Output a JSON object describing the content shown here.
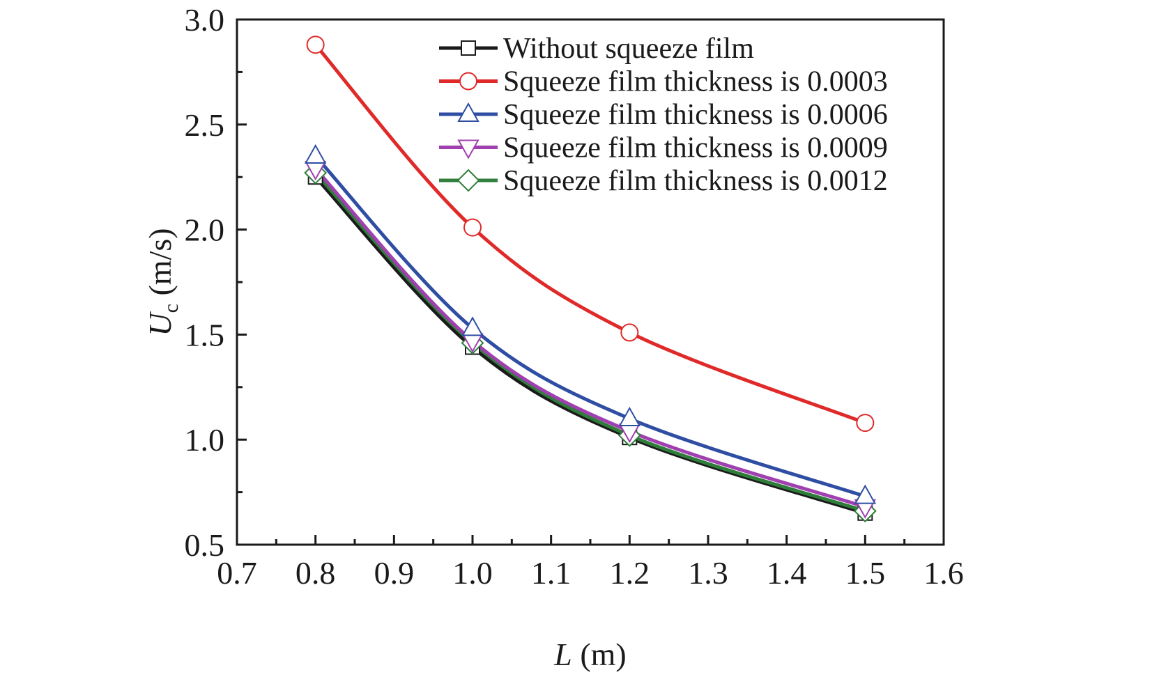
{
  "chart_data": {
    "type": "line",
    "title": "",
    "xlabel": "L (m)",
    "xlabel_parts": {
      "italic": "L",
      "rest": " (m)"
    },
    "ylabel": "Uc (m/s)",
    "ylabel_parts": {
      "italic": "U",
      "sub": "c",
      "rest": " (m/s)"
    },
    "xlim": [
      0.7,
      1.6
    ],
    "ylim": [
      0.5,
      3.0
    ],
    "xticks": [
      0.7,
      0.8,
      0.9,
      1.0,
      1.1,
      1.2,
      1.3,
      1.4,
      1.5,
      1.6
    ],
    "xtick_labels": [
      "0.7",
      "0.8",
      "0.9",
      "1.0",
      "1.1",
      "1.2",
      "1.3",
      "1.4",
      "1.5",
      "1.6"
    ],
    "yticks": [
      0.5,
      1.0,
      1.5,
      2.0,
      2.5,
      3.0
    ],
    "ytick_labels": [
      "0.5",
      "1.0",
      "1.5",
      "2.0",
      "2.5",
      "3.0"
    ],
    "grid": false,
    "legend_position": "top-right",
    "x": [
      0.8,
      1.0,
      1.2,
      1.5
    ],
    "series": [
      {
        "name": "Without squeeze film",
        "color": "#1a1a1a",
        "marker": "square",
        "values": [
          2.25,
          1.44,
          1.01,
          0.65
        ]
      },
      {
        "name": "Squeeze film thickness is 0.0003",
        "color": "#e02a2a",
        "marker": "circle",
        "values": [
          2.88,
          2.01,
          1.51,
          1.08
        ]
      },
      {
        "name": "Squeeze film thickness is 0.0006",
        "color": "#2f4ea3",
        "marker": "triangle-up",
        "values": [
          2.35,
          1.53,
          1.1,
          0.73
        ]
      },
      {
        "name": "Squeeze film thickness is 0.0009",
        "color": "#a040b0",
        "marker": "triangle-down",
        "values": [
          2.29,
          1.47,
          1.04,
          0.68
        ]
      },
      {
        "name": "Squeeze film thickness is 0.0012",
        "color": "#2e7d3a",
        "marker": "diamond",
        "values": [
          2.27,
          1.46,
          1.02,
          0.66
        ]
      }
    ]
  }
}
